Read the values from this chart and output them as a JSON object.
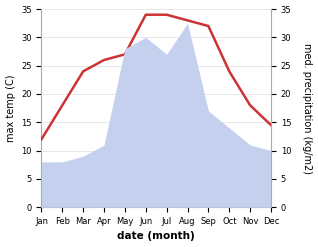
{
  "months": [
    "Jan",
    "Feb",
    "Mar",
    "Apr",
    "May",
    "Jun",
    "Jul",
    "Aug",
    "Sep",
    "Oct",
    "Nov",
    "Dec"
  ],
  "x_positions": [
    1,
    2,
    3,
    4,
    5,
    6,
    7,
    8,
    9,
    10,
    11,
    12
  ],
  "temperature": [
    12,
    18,
    24,
    26,
    27,
    34,
    34,
    33,
    32,
    24,
    18,
    14.5
  ],
  "precipitation": [
    8,
    8,
    9,
    11,
    28,
    30,
    27,
    32.5,
    17,
    14,
    11,
    10
  ],
  "temp_color": "#cc3333",
  "precip_fill_color": "#c5d0ee",
  "ylim": [
    0,
    35
  ],
  "yticks": [
    0,
    5,
    10,
    15,
    20,
    25,
    30,
    35
  ],
  "ylabel_left": "max temp (C)",
  "ylabel_right": "med. precipitation (kg/m2)",
  "xlabel": "date (month)",
  "temp_linewidth": 1.8,
  "grid_color": "#dddddd",
  "tick_fontsize": 6,
  "label_fontsize": 7,
  "xlabel_fontsize": 7.5
}
